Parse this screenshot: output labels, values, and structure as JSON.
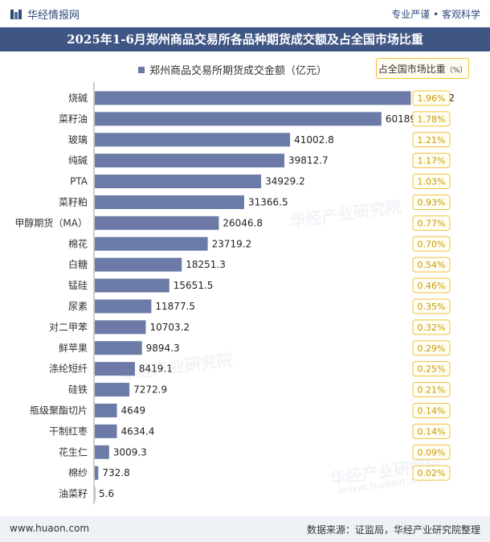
{
  "header": {
    "brand": "华经情报网",
    "tagline": "专业严谨 • 客观科学",
    "title": "2025年1-6月郑州商品交易所各品种期货成交额及占全国市场比重"
  },
  "legend": {
    "series_label": "郑州商品交易所期货成交金额（亿元）",
    "share_label": "占全国市场比重",
    "share_unit": "（%）"
  },
  "footer": {
    "url": "www.huaon.com",
    "source": "数据来源：证监局，华经产业研究院整理"
  },
  "watermark": {
    "text": "华经产业研究院",
    "url": "www.huaon.com"
  },
  "colors": {
    "bar": "#6b7aa6",
    "title_bg": "#3f5583",
    "badge_border": "#f0c040",
    "badge_text": "#c89a00"
  },
  "chart_data": {
    "type": "bar",
    "orientation": "horizontal",
    "categories": [
      "烧碱",
      "菜籽油",
      "玻璃",
      "纯碱",
      "PTA",
      "菜籽粕",
      "甲醇期货（MA）",
      "棉花",
      "白糖",
      "锰硅",
      "尿素",
      "对二甲苯",
      "鲜苹果",
      "涤纶短纤",
      "硅铁",
      "瓶级聚酯切片",
      "干制红枣",
      "花生仁",
      "棉纱",
      "油菜籽"
    ],
    "series": [
      {
        "name": "郑州商品交易所期货成交金额（亿元）",
        "values": [
          66362.2,
          60189.9,
          41002.8,
          39812.7,
          34929.2,
          31366.5,
          26046.8,
          23719.2,
          18251.3,
          15651.5,
          11877.5,
          10703.2,
          9894.3,
          8419.1,
          7272.9,
          4649,
          4634.4,
          3009.3,
          732.8,
          5.6
        ],
        "labels": [
          "66362.2",
          "60189.9",
          "41002.8",
          "39812.7",
          "34929.2",
          "31366.5",
          "26046.8",
          "23719.2",
          "18251.3",
          "15651.5",
          "11877.5",
          "10703.2",
          "9894.3",
          "8419.1",
          "7272.9",
          "4649",
          "4634.4",
          "3009.3",
          "732.8",
          "5.6"
        ]
      },
      {
        "name": "占全国市场比重",
        "values": [
          1.96,
          1.78,
          1.21,
          1.17,
          1.03,
          0.93,
          0.77,
          0.7,
          0.54,
          0.46,
          0.35,
          0.32,
          0.29,
          0.25,
          0.21,
          0.14,
          0.14,
          0.09,
          0.02,
          null
        ],
        "labels": [
          "1.96%",
          "1.78%",
          "1.21%",
          "1.17%",
          "1.03%",
          "0.93%",
          "0.77%",
          "0.70%",
          "0.54%",
          "0.46%",
          "0.35%",
          "0.32%",
          "0.29%",
          "0.25%",
          "0.21%",
          "0.14%",
          "0.14%",
          "0.09%",
          "0.02%",
          ""
        ]
      }
    ],
    "xlim": [
      0,
      70000
    ],
    "grid": false,
    "legend_position": "top"
  }
}
